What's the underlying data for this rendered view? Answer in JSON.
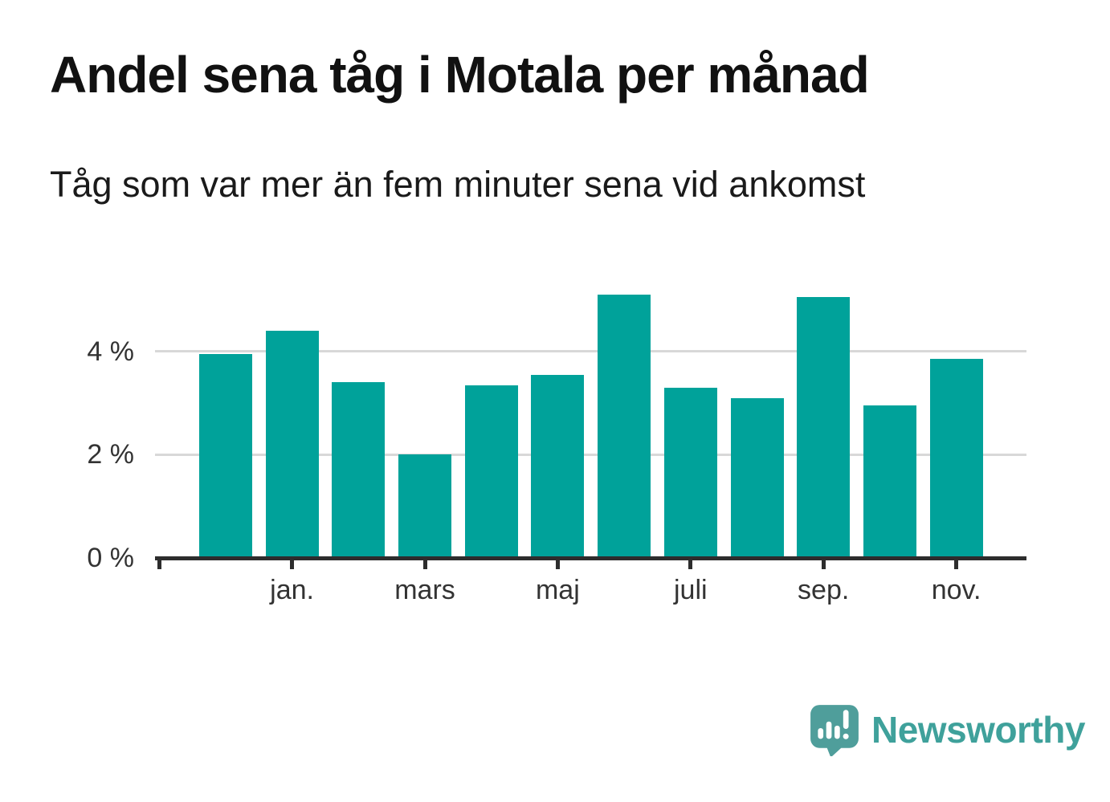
{
  "header": {
    "title": "Andel sena tåg i Motala per månad",
    "subtitle": "Tåg som var mer än fem minuter sena vid ankomst"
  },
  "chart_data": {
    "type": "bar",
    "title": "Andel sena tåg i Motala per månad",
    "subtitle": "Tåg som var mer än fem minuter sena vid ankomst",
    "unit": "%",
    "categories": [
      "",
      "jan.",
      "",
      "mars",
      "",
      "maj",
      "",
      "juli",
      "",
      "sep.",
      "",
      "nov."
    ],
    "values": [
      3.95,
      4.4,
      3.4,
      2.0,
      3.35,
      3.55,
      5.1,
      3.3,
      3.1,
      5.05,
      2.95,
      3.85
    ],
    "x_tick_labels": [
      "jan.",
      "mars",
      "maj",
      "juli",
      "sep.",
      "nov."
    ],
    "y_ticks": [
      {
        "value": 0,
        "label": "0 %"
      },
      {
        "value": 2,
        "label": "2 %"
      },
      {
        "value": 4,
        "label": "4 %"
      }
    ],
    "ylim": [
      0,
      5.5
    ],
    "grid": "horizontal-behind-bars",
    "legend": "none",
    "xlabel": "",
    "ylabel": ""
  },
  "footer": {
    "brand_name": "Newsworthy"
  },
  "colors": {
    "background": "#FFFFFF",
    "bar": "#00A29A",
    "axis": "#2D2D2D",
    "gridline": "#D8D8D8",
    "tick_label": "#333333",
    "title": "#111111",
    "subtitle": "#1A1A1A",
    "brand_text": "#3FA19B",
    "brand_bubble": "#4F9E9B",
    "logo_glyph": "#FFFFFF"
  },
  "icons": {
    "logo": "newsworthy-speech-bubble-bar-chart-icon"
  }
}
